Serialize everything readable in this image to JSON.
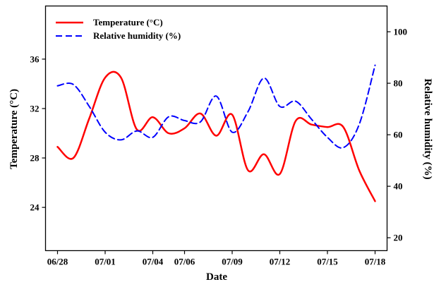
{
  "chart_data": {
    "type": "line",
    "xlabel": "Date",
    "ylabel_left": "Temperature (°C)",
    "ylabel_right": "Relative humidity (%)",
    "x_ticks": [
      "06/28",
      "07/01",
      "07/04",
      "07/06",
      "07/09",
      "07/12",
      "07/15",
      "07/18"
    ],
    "x_range": [
      "06/28",
      "07/18"
    ],
    "y_left_range": [
      20.5,
      40.3
    ],
    "y_left_ticks": [
      24,
      28,
      32,
      36
    ],
    "y_right_range": [
      15,
      110
    ],
    "y_right_ticks": [
      20,
      40,
      60,
      80,
      100
    ],
    "legend_position": "top-left",
    "grid": false,
    "series": [
      {
        "name": "Temperature (°C)",
        "axis": "left",
        "color": "#ff0000",
        "style": "solid",
        "x": [
          "06/28",
          "06/29",
          "06/30",
          "07/01",
          "07/02",
          "07/03",
          "07/04",
          "07/05",
          "07/06",
          "07/07",
          "07/08",
          "07/09",
          "07/10",
          "07/11",
          "07/12",
          "07/13",
          "07/14",
          "07/15",
          "07/16",
          "07/17",
          "07/18"
        ],
        "values": [
          28.9,
          28.0,
          31.2,
          34.5,
          34.5,
          30.3,
          31.3,
          30.0,
          30.4,
          31.6,
          29.8,
          31.5,
          27.0,
          28.3,
          26.7,
          31.0,
          30.7,
          30.5,
          30.5,
          27.0,
          24.5
        ]
      },
      {
        "name": "Relative humidity (%)",
        "axis": "right",
        "color": "#0000ff",
        "style": "dashed",
        "x": [
          "06/28",
          "06/29",
          "06/30",
          "07/01",
          "07/02",
          "07/03",
          "07/04",
          "07/05",
          "07/06",
          "07/07",
          "07/08",
          "07/09",
          "07/10",
          "07/11",
          "07/12",
          "07/13",
          "07/14",
          "07/15",
          "07/16",
          "07/17",
          "07/18"
        ],
        "values": [
          79,
          79.5,
          71,
          61,
          58,
          61.5,
          59,
          67,
          65.5,
          65,
          75,
          61,
          69,
          82,
          71,
          73,
          66,
          59,
          55,
          64,
          87
        ]
      }
    ]
  }
}
